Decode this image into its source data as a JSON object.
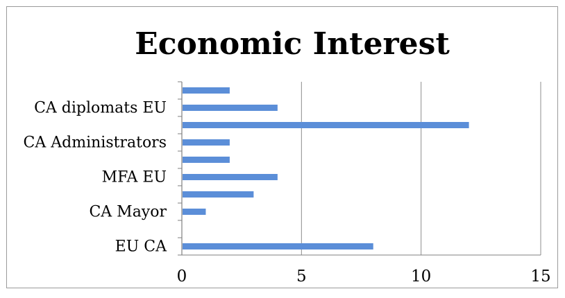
{
  "chart_data": {
    "type": "bar",
    "orientation": "horizontal",
    "title": "Economic Interest",
    "xlabel": "",
    "ylabel": "",
    "xlim": [
      0,
      15
    ],
    "x_ticks": [
      "0",
      "5",
      "10",
      "15"
    ],
    "grid": true,
    "legend": "none",
    "bar_color": "#5b8ed8",
    "category_labels_shown": [
      "CA diplomats EU",
      "CA Administrators",
      "MFA EU",
      "CA Mayor",
      "EU CA"
    ],
    "rows": [
      {
        "label": "",
        "value": 2
      },
      {
        "label": "CA diplomats EU",
        "value": 4
      },
      {
        "label": "",
        "value": 12
      },
      {
        "label": "CA Administrators",
        "value": 2
      },
      {
        "label": "",
        "value": 2
      },
      {
        "label": "MFA EU",
        "value": 4
      },
      {
        "label": "",
        "value": 3
      },
      {
        "label": "CA Mayor",
        "value": 1
      },
      {
        "label": "",
        "value": 0
      },
      {
        "label": "EU CA",
        "value": 8
      }
    ]
  }
}
